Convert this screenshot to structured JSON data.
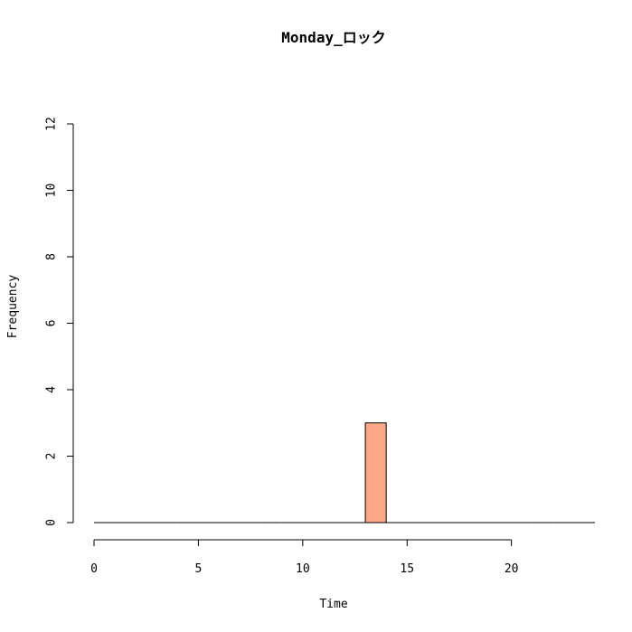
{
  "chart_data": {
    "type": "bar",
    "title": "Monday_ロック",
    "xlabel": "Time",
    "ylabel": "Frequency",
    "xlim": [
      0,
      24
    ],
    "ylim": [
      0,
      12
    ],
    "x_ticks": [
      0,
      5,
      10,
      15,
      20
    ],
    "y_ticks": [
      0,
      2,
      4,
      6,
      8,
      10,
      12
    ],
    "bins": [
      {
        "start": 0,
        "end": 1,
        "value": 0
      },
      {
        "start": 1,
        "end": 2,
        "value": 0
      },
      {
        "start": 2,
        "end": 3,
        "value": 0
      },
      {
        "start": 3,
        "end": 4,
        "value": 0
      },
      {
        "start": 4,
        "end": 5,
        "value": 0
      },
      {
        "start": 5,
        "end": 6,
        "value": 0
      },
      {
        "start": 6,
        "end": 7,
        "value": 0
      },
      {
        "start": 7,
        "end": 8,
        "value": 0
      },
      {
        "start": 8,
        "end": 9,
        "value": 0
      },
      {
        "start": 9,
        "end": 10,
        "value": 0
      },
      {
        "start": 10,
        "end": 11,
        "value": 0
      },
      {
        "start": 11,
        "end": 12,
        "value": 0
      },
      {
        "start": 12,
        "end": 13,
        "value": 0
      },
      {
        "start": 13,
        "end": 14,
        "value": 3
      },
      {
        "start": 14,
        "end": 15,
        "value": 0
      },
      {
        "start": 15,
        "end": 16,
        "value": 0
      },
      {
        "start": 16,
        "end": 17,
        "value": 0
      },
      {
        "start": 17,
        "end": 18,
        "value": 0
      },
      {
        "start": 18,
        "end": 19,
        "value": 0
      },
      {
        "start": 19,
        "end": 20,
        "value": 0
      },
      {
        "start": 20,
        "end": 21,
        "value": 0
      },
      {
        "start": 21,
        "end": 22,
        "value": 0
      },
      {
        "start": 22,
        "end": 23,
        "value": 0
      },
      {
        "start": 23,
        "end": 24,
        "value": 0
      }
    ],
    "bar_color": "#FCA886",
    "grid": false,
    "legend": "none"
  }
}
